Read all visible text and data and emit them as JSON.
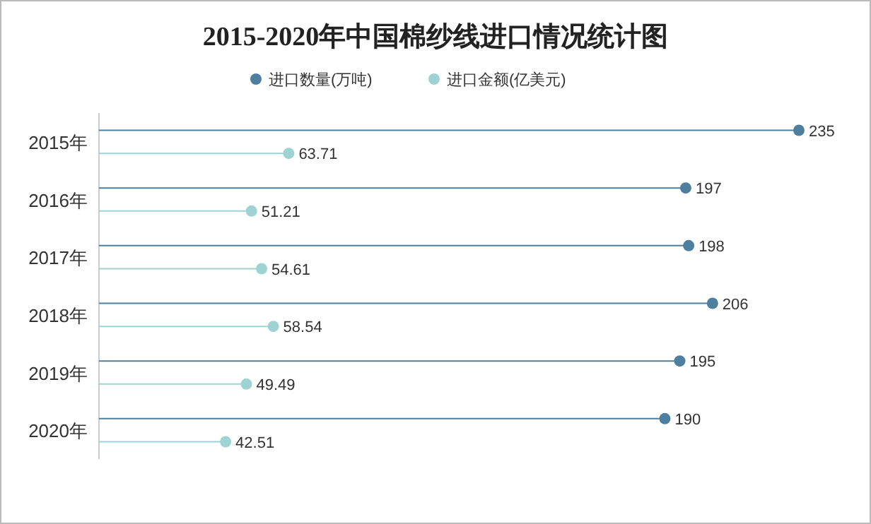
{
  "chart_data": {
    "type": "lollipop",
    "title": "2015-2020年中国棉纱线进口情况统计图",
    "orientation": "horizontal",
    "categories": [
      "2015年",
      "2016年",
      "2017年",
      "2018年",
      "2019年",
      "2020年"
    ],
    "series": [
      {
        "name": "进口数量(万吨)",
        "color": "#4e7f9f",
        "values": [
          235,
          197,
          198,
          206,
          195,
          190
        ]
      },
      {
        "name": "进口金额(亿美元)",
        "color": "#9fd3d3",
        "values": [
          63.71,
          51.21,
          54.61,
          58.54,
          49.49,
          42.51
        ]
      }
    ],
    "data_labels": true,
    "legend": "top",
    "marker": "circle"
  }
}
